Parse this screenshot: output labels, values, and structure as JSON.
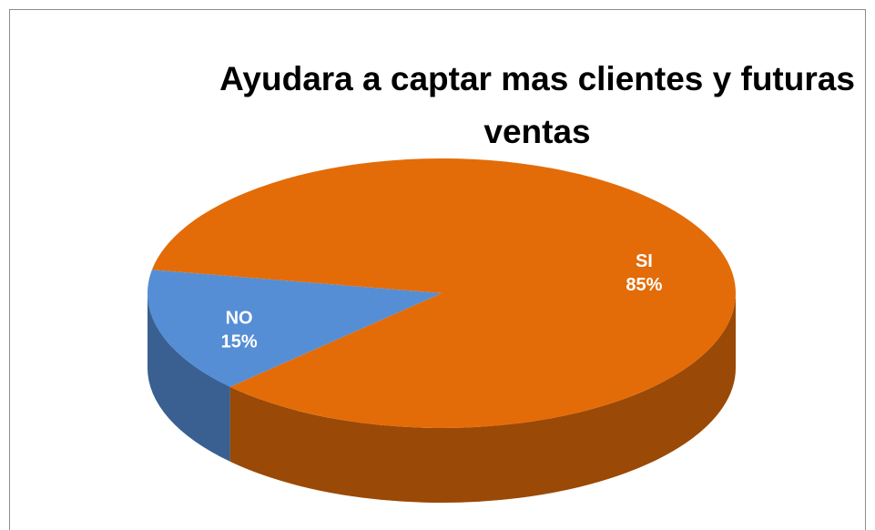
{
  "chart_data": {
    "type": "pie",
    "title": "Ayudara a captar mas clientes y futuras ventas",
    "categories": [
      "SI",
      "NO"
    ],
    "values": [
      85,
      15
    ],
    "value_labels": [
      "85%",
      "15%"
    ],
    "colors": [
      "#e36c09",
      "#558ed5"
    ]
  }
}
